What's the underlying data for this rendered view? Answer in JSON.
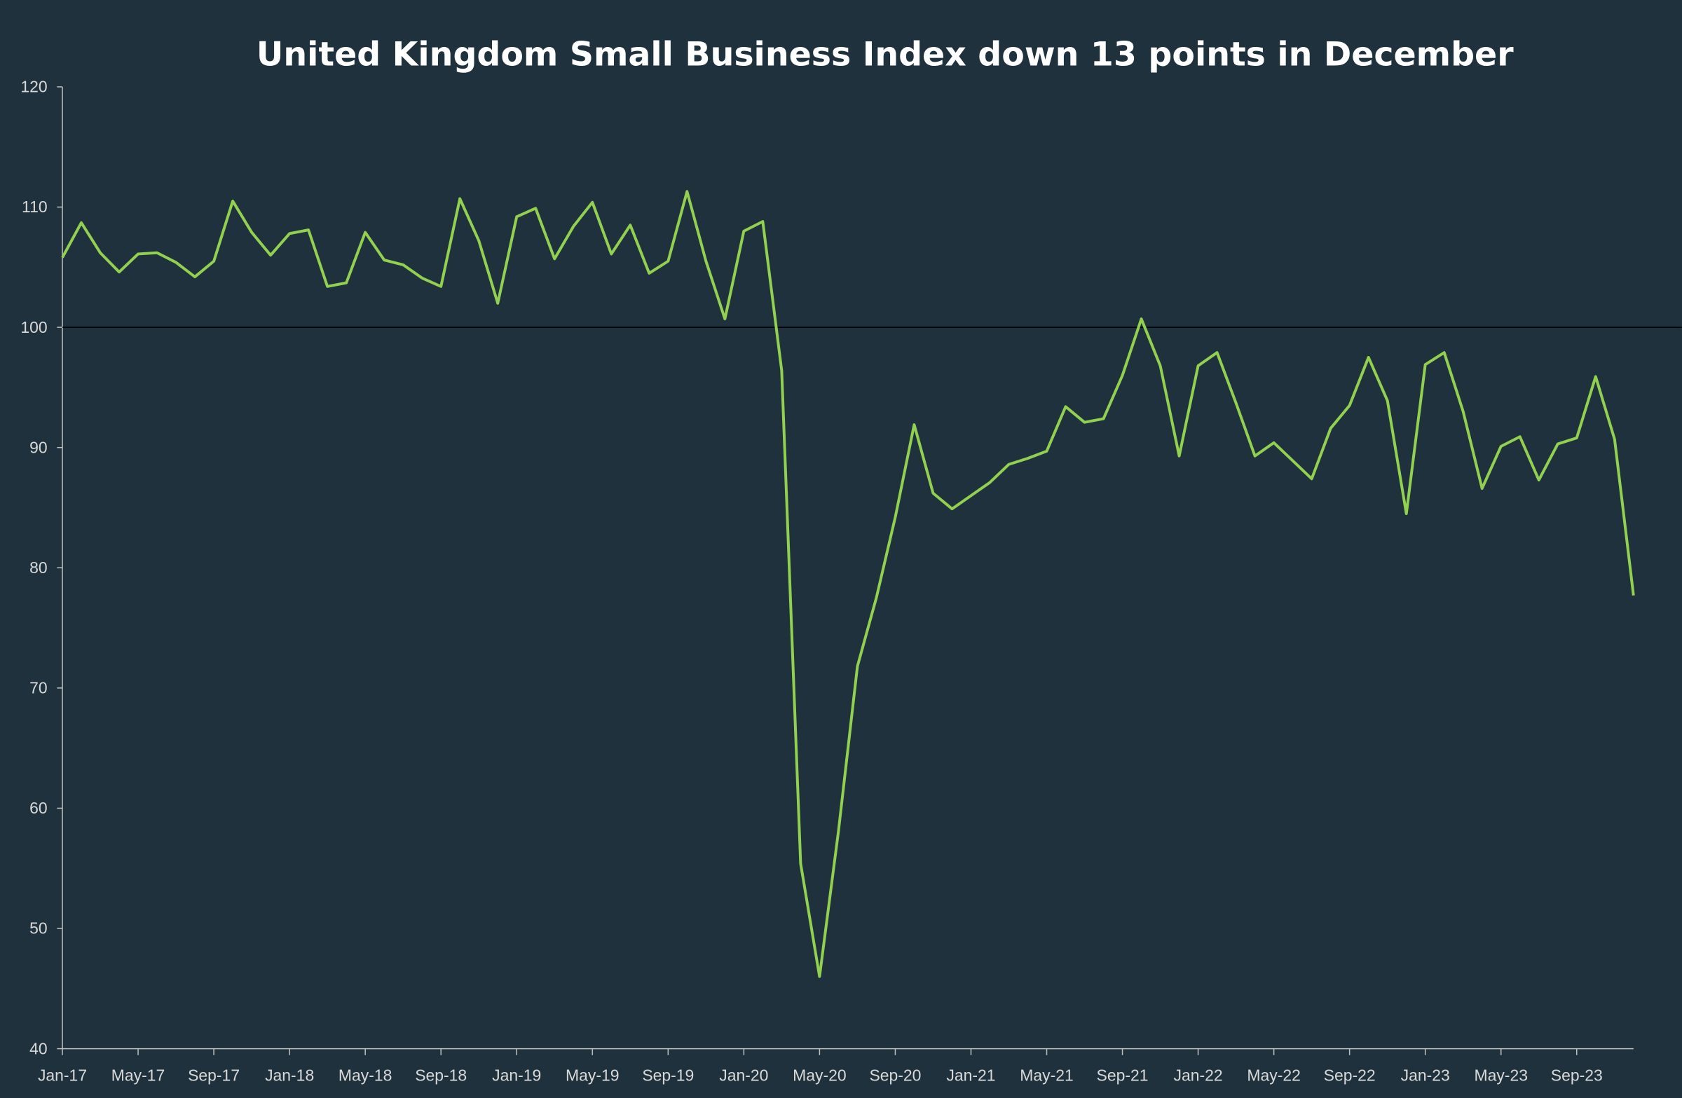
{
  "chart_data": {
    "type": "line",
    "title": "United Kingdom Small Business Index down 13 points in December",
    "xlabel": "",
    "ylabel": "",
    "ylim": [
      40,
      120
    ],
    "yticks": [
      40,
      50,
      60,
      70,
      80,
      90,
      100,
      110,
      120
    ],
    "reference_line": 100,
    "grid": false,
    "legend": "none",
    "colors": {
      "background": "#1f313d",
      "line": "#92d050",
      "reference": "#000000",
      "text": "#d9d9d9",
      "title": "#ffffff"
    },
    "x": [
      "Jan-17",
      "Feb-17",
      "Mar-17",
      "Apr-17",
      "May-17",
      "Jun-17",
      "Jul-17",
      "Aug-17",
      "Sep-17",
      "Oct-17",
      "Nov-17",
      "Dec-17",
      "Jan-18",
      "Feb-18",
      "Mar-18",
      "Apr-18",
      "May-18",
      "Jun-18",
      "Jul-18",
      "Aug-18",
      "Sep-18",
      "Oct-18",
      "Nov-18",
      "Dec-18",
      "Jan-19",
      "Feb-19",
      "Mar-19",
      "Apr-19",
      "May-19",
      "Jun-19",
      "Jul-19",
      "Aug-19",
      "Sep-19",
      "Oct-19",
      "Nov-19",
      "Dec-19",
      "Jan-20",
      "Feb-20",
      "Mar-20",
      "Apr-20",
      "May-20",
      "Jun-20",
      "Jul-20",
      "Aug-20",
      "Sep-20",
      "Oct-20",
      "Nov-20",
      "Dec-20",
      "Jan-21",
      "Feb-21",
      "Mar-21",
      "Apr-21",
      "May-21",
      "Jun-21",
      "Jul-21",
      "Aug-21",
      "Sep-21",
      "Oct-21",
      "Nov-21",
      "Dec-21",
      "Jan-22",
      "Feb-22",
      "Mar-22",
      "Apr-22",
      "May-22",
      "Jun-22",
      "Jul-22",
      "Aug-22",
      "Sep-22",
      "Oct-22",
      "Nov-22",
      "Dec-22",
      "Jan-23",
      "Feb-23",
      "Mar-23",
      "Apr-23",
      "May-23",
      "Jun-23",
      "Jul-23",
      "Aug-23",
      "Sep-23",
      "Oct-23",
      "Nov-23",
      "Dec-23"
    ],
    "xtick_labels": [
      "Jan-17",
      "May-17",
      "Sep-17",
      "Jan-18",
      "May-18",
      "Sep-18",
      "Jan-19",
      "May-19",
      "Sep-19",
      "Jan-20",
      "May-20",
      "Sep-20",
      "Jan-21",
      "May-21",
      "Sep-21",
      "Jan-22",
      "May-22",
      "Sep-22",
      "Jan-23",
      "May-23",
      "Sep-23"
    ],
    "series": [
      {
        "values": [
          105.8,
          108.7,
          106.2,
          104.6,
          106.1,
          106.2,
          105.4,
          104.2,
          105.5,
          110.5,
          107.9,
          106.0,
          107.8,
          108.1,
          103.4,
          103.7,
          107.9,
          105.6,
          105.2,
          104.1,
          103.4,
          110.7,
          107.2,
          102.0,
          109.2,
          109.9,
          105.7,
          108.4,
          110.4,
          106.1,
          108.5,
          104.5,
          105.5,
          111.3,
          105.5,
          100.7,
          108.0,
          108.8,
          96.4,
          55.4,
          46.0,
          58.1,
          71.8,
          77.5,
          84.2,
          91.9,
          86.2,
          84.9,
          86.0,
          87.1,
          88.6,
          89.1,
          89.7,
          93.4,
          92.1,
          92.4,
          96.0,
          100.7,
          96.8,
          89.3,
          96.8,
          97.9,
          93.7,
          89.3,
          90.4,
          88.9,
          87.4,
          91.6,
          93.5,
          97.5,
          93.9,
          84.5,
          96.9,
          97.9,
          93.0,
          86.6,
          90.1,
          90.9,
          87.3,
          90.3,
          90.8,
          95.9,
          90.7,
          77.7
        ]
      }
    ]
  }
}
